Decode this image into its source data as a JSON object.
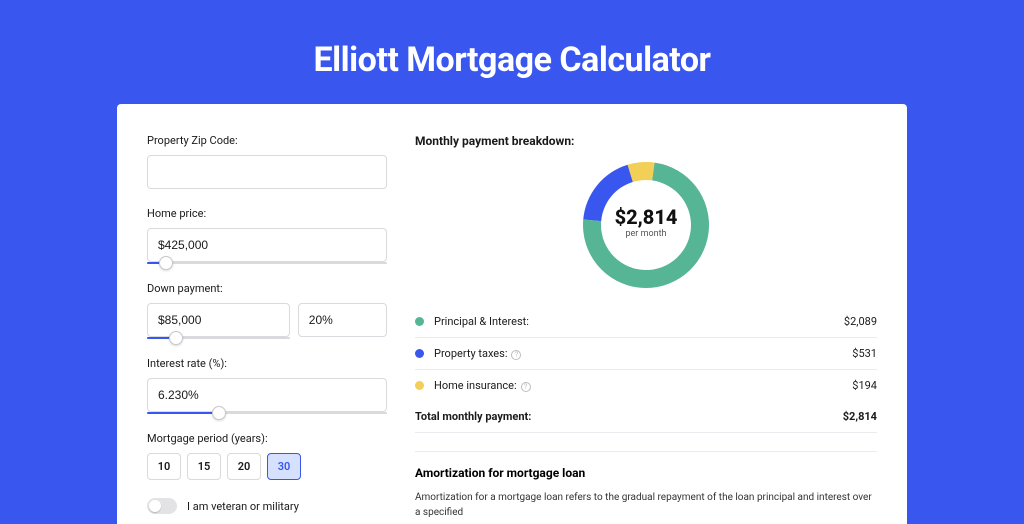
{
  "page": {
    "title": "Elliott Mortgage Calculator",
    "bg_color": "#3957ee"
  },
  "form": {
    "zip": {
      "label": "Property Zip Code:",
      "value": ""
    },
    "home_price": {
      "label": "Home price:",
      "value": "$425,000",
      "slider_pct": 8
    },
    "down_payment": {
      "label": "Down payment:",
      "amount": "$85,000",
      "pct": "20%",
      "slider_pct": 20
    },
    "interest_rate": {
      "label": "Interest rate (%):",
      "value": "6.230%",
      "slider_pct": 30
    },
    "mortgage_period": {
      "label": "Mortgage period (years):",
      "options": [
        "10",
        "15",
        "20",
        "30"
      ],
      "selected": "30"
    },
    "veteran": {
      "label": "I am veteran or military",
      "on": false
    }
  },
  "breakdown": {
    "heading": "Monthly payment breakdown:",
    "donut": {
      "center_amount": "$2,814",
      "center_sub": "per month",
      "segments": [
        {
          "label": "Principal & Interest",
          "value_pct": 74.2,
          "color": "#56b594"
        },
        {
          "label": "Property taxes",
          "value_pct": 18.9,
          "color": "#3957ee"
        },
        {
          "label": "Home insurance",
          "value_pct": 6.9,
          "color": "#f2cf57"
        }
      ],
      "size": 126,
      "thickness": 18,
      "bg_ring": "#eceaef"
    },
    "rows": [
      {
        "swatch": "#56b594",
        "label": "Principal & Interest:",
        "value": "$2,089",
        "info": false
      },
      {
        "swatch": "#3957ee",
        "label": "Property taxes:",
        "value": "$531",
        "info": true
      },
      {
        "swatch": "#f2cf57",
        "label": "Home insurance:",
        "value": "$194",
        "info": true
      }
    ],
    "total": {
      "label": "Total monthly payment:",
      "value": "$2,814"
    }
  },
  "amortization": {
    "heading": "Amortization for mortgage loan",
    "text": "Amortization for a mortgage loan refers to the gradual repayment of the loan principal and interest over a specified"
  }
}
